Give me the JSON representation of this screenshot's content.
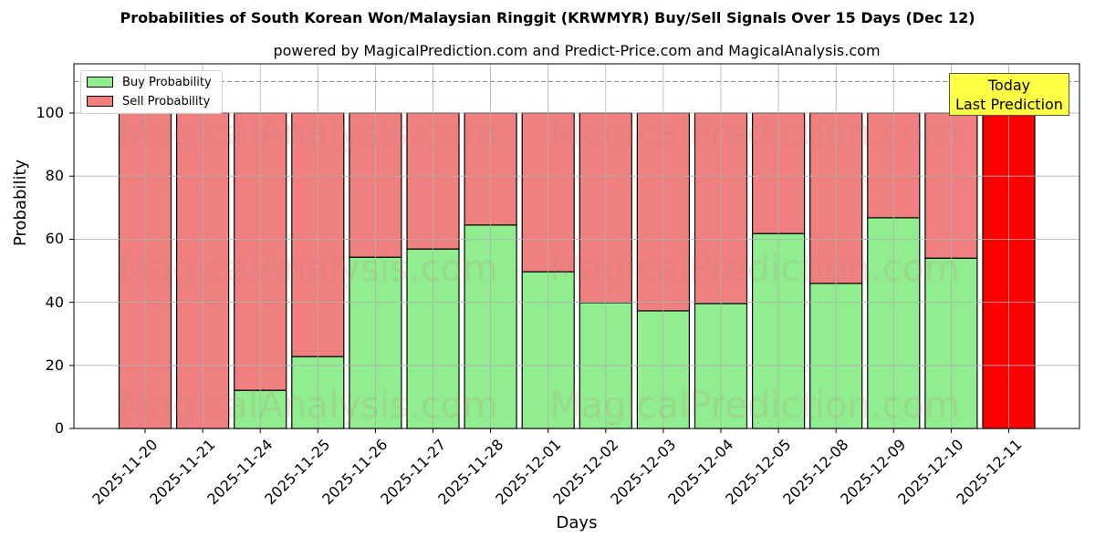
{
  "header": {
    "title": "Probabilities of South Korean Won/Malaysian Ringgit (KRWMYR) Buy/Sell Signals Over 15 Days (Dec 12)",
    "subtitle": "powered by MagicalPrediction.com and Predict-Price.com and MagicalAnalysis.com"
  },
  "legend": {
    "buy_label": "Buy Probability",
    "sell_label": "Sell Probability"
  },
  "annotation": {
    "line1": "Today",
    "line2": "Last Prediction"
  },
  "watermarks": [
    "MagicalAnalysis.com",
    "MagicalPrediction.com"
  ],
  "colors": {
    "buy": "#90ee90",
    "sell": "#f08080",
    "today": "#ff0000",
    "annotation_bg": "#ffff44"
  },
  "chart_data": {
    "type": "bar",
    "stacked": true,
    "title": "Probabilities of South Korean Won/Malaysian Ringgit (KRWMYR) Buy/Sell Signals Over 15 Days (Dec 12)",
    "subtitle": "powered by MagicalPrediction.com and Predict-Price.com and MagicalAnalysis.com",
    "xlabel": "Days",
    "ylabel": "Probability",
    "ylim": [
      0,
      115
    ],
    "yticks": [
      0,
      20,
      40,
      60,
      80,
      100
    ],
    "grid": true,
    "legend_position": "upper left",
    "reference_line": {
      "y": 110,
      "style": "dashed",
      "color": "#808080"
    },
    "categories": [
      "2025-11-20",
      "2025-11-21",
      "2025-11-24",
      "2025-11-25",
      "2025-11-26",
      "2025-11-27",
      "2025-11-28",
      "2025-12-01",
      "2025-12-02",
      "2025-12-03",
      "2025-12-04",
      "2025-12-05",
      "2025-12-08",
      "2025-12-09",
      "2025-12-10",
      "2025-12-11"
    ],
    "series": [
      {
        "name": "Buy Probability",
        "values": [
          0,
          0,
          12.1,
          22.8,
          54.3,
          56.9,
          64.5,
          49.7,
          39.9,
          37.3,
          39.6,
          61.8,
          46.0,
          66.8,
          54.0,
          0
        ]
      },
      {
        "name": "Sell Probability",
        "values": [
          100,
          100,
          87.9,
          77.2,
          45.7,
          43.1,
          35.5,
          50.3,
          60.1,
          62.7,
          60.4,
          38.2,
          54.0,
          33.2,
          46.0,
          100
        ]
      }
    ],
    "highlight": {
      "category": "2025-12-11",
      "label": "Today / Last Prediction",
      "color": "#ff0000"
    }
  }
}
